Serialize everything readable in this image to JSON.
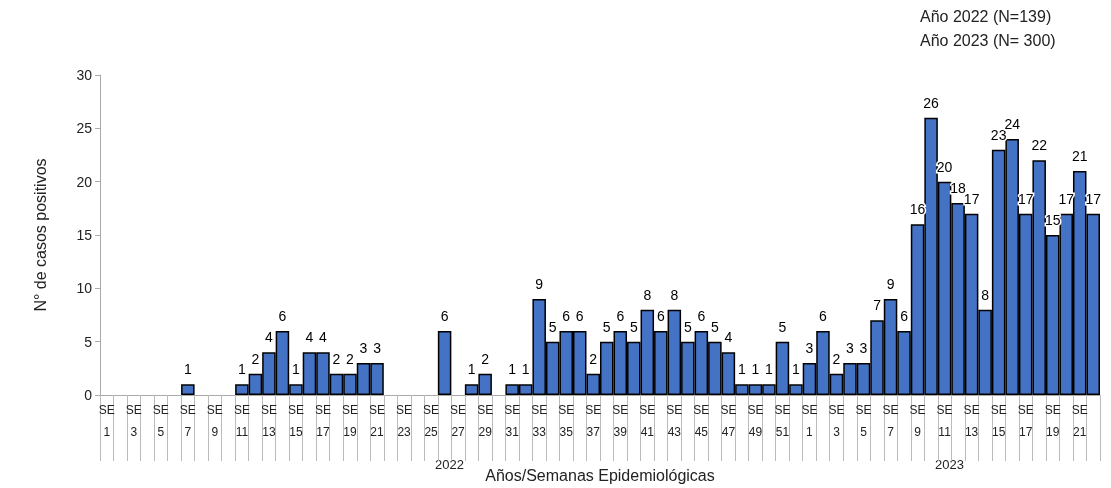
{
  "chart_data": {
    "type": "bar",
    "xlabel": "Años/Semanas Epidemiológicas",
    "ylabel": "N° de casos positivos",
    "annotations": [
      "Año 2022 (N=139)",
      "Año 2023 (N= 300)",
      "2022",
      "2023"
    ],
    "categories": [
      "SE 1",
      null,
      "SE 3",
      null,
      "SE 5",
      null,
      "SE 7",
      null,
      "SE 9",
      null,
      "SE 11",
      null,
      "SE 13",
      null,
      "SE 15",
      null,
      "SE 17",
      null,
      "SE 19",
      null,
      "SE 21",
      null,
      "SE 23",
      null,
      "SE 25",
      null,
      "SE 27",
      null,
      "SE 29",
      null,
      "SE 31",
      null,
      "SE 33",
      null,
      "SE 35",
      null,
      "SE 37",
      null,
      "SE 39",
      null,
      "SE 41",
      null,
      "SE 43",
      null,
      "SE 45",
      null,
      "SE 47",
      null,
      "SE 49",
      null,
      "SE 51",
      null,
      "SE 1",
      null,
      "SE 3",
      null,
      "SE 5",
      null,
      "SE 7",
      null,
      "SE 9",
      null,
      "SE 11",
      null,
      "SE 13",
      null,
      "SE 15",
      null,
      "SE 17",
      null,
      "SE 19",
      null,
      "SE 21",
      null
    ],
    "values": [
      0,
      0,
      0,
      0,
      0,
      0,
      1,
      0,
      0,
      0,
      1,
      2,
      4,
      6,
      1,
      4,
      4,
      2,
      2,
      3,
      3,
      0,
      0,
      0,
      0,
      6,
      0,
      1,
      2,
      0,
      1,
      1,
      9,
      5,
      6,
      6,
      2,
      5,
      6,
      5,
      8,
      6,
      8,
      5,
      6,
      5,
      4,
      1,
      1,
      1,
      5,
      1,
      3,
      6,
      2,
      3,
      3,
      7,
      9,
      6,
      16,
      26,
      20,
      18,
      17,
      8,
      23,
      24,
      17,
      22,
      15,
      17,
      21,
      17
    ],
    "value_labels": [
      null,
      null,
      null,
      null,
      null,
      null,
      "1",
      null,
      null,
      null,
      "1",
      "2",
      "4",
      "6",
      "1",
      "4",
      "4",
      "2",
      "2",
      "3",
      "3",
      null,
      null,
      null,
      null,
      "6",
      null,
      "1",
      "2",
      null,
      "1",
      "1",
      "9",
      "5",
      "6",
      "6",
      "2",
      "5",
      "6",
      "5",
      "8",
      "6",
      "8",
      "5",
      "6",
      "5",
      "4",
      "1",
      "1",
      "1",
      "5",
      "1",
      "3",
      "6",
      "2",
      "3",
      "3",
      "7",
      "9",
      "6",
      "16",
      "26",
      "20",
      "18",
      "17",
      "8",
      "23",
      "24",
      "17",
      "22",
      "15",
      "17",
      "21",
      "17"
    ],
    "color": "#4472c4",
    "ylim": [
      0,
      30
    ],
    "yticks": [
      0,
      5,
      10,
      15,
      20,
      25,
      30
    ],
    "grid": false
  }
}
